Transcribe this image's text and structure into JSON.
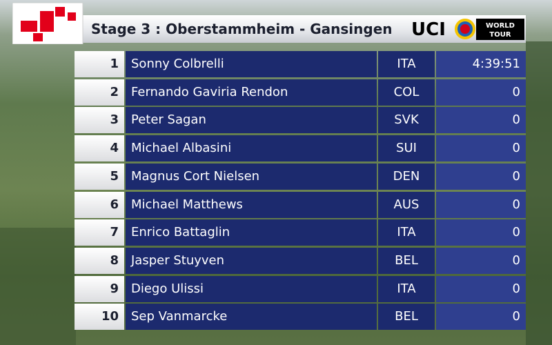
{
  "header": {
    "title": "Stage 3 : Oberstammheim - Gansingen",
    "logo": {
      "uci": "UCI",
      "line1": "WORLD",
      "line2": "TOUR"
    }
  },
  "table": {
    "rows": [
      [
        "1",
        "Sonny Colbrelli",
        "ITA",
        "4:39:51"
      ],
      [
        "2",
        "Fernando Gaviria Rendon",
        "COL",
        "0"
      ],
      [
        "3",
        "Peter Sagan",
        "SVK",
        "0"
      ],
      [
        "4",
        "Michael Albasini",
        "SUI",
        "0"
      ],
      [
        "5",
        "Magnus Cort Nielsen",
        "DEN",
        "0"
      ],
      [
        "6",
        "Michael Matthews",
        "AUS",
        "0"
      ],
      [
        "7",
        "Enrico Battaglin",
        "ITA",
        "0"
      ],
      [
        "8",
        "Jasper Stuyven",
        "BEL",
        "0"
      ],
      [
        "9",
        "Diego Ulissi",
        "ITA",
        "0"
      ],
      [
        "10",
        "Sep Vanmarcke",
        "BEL",
        "0"
      ]
    ]
  }
}
